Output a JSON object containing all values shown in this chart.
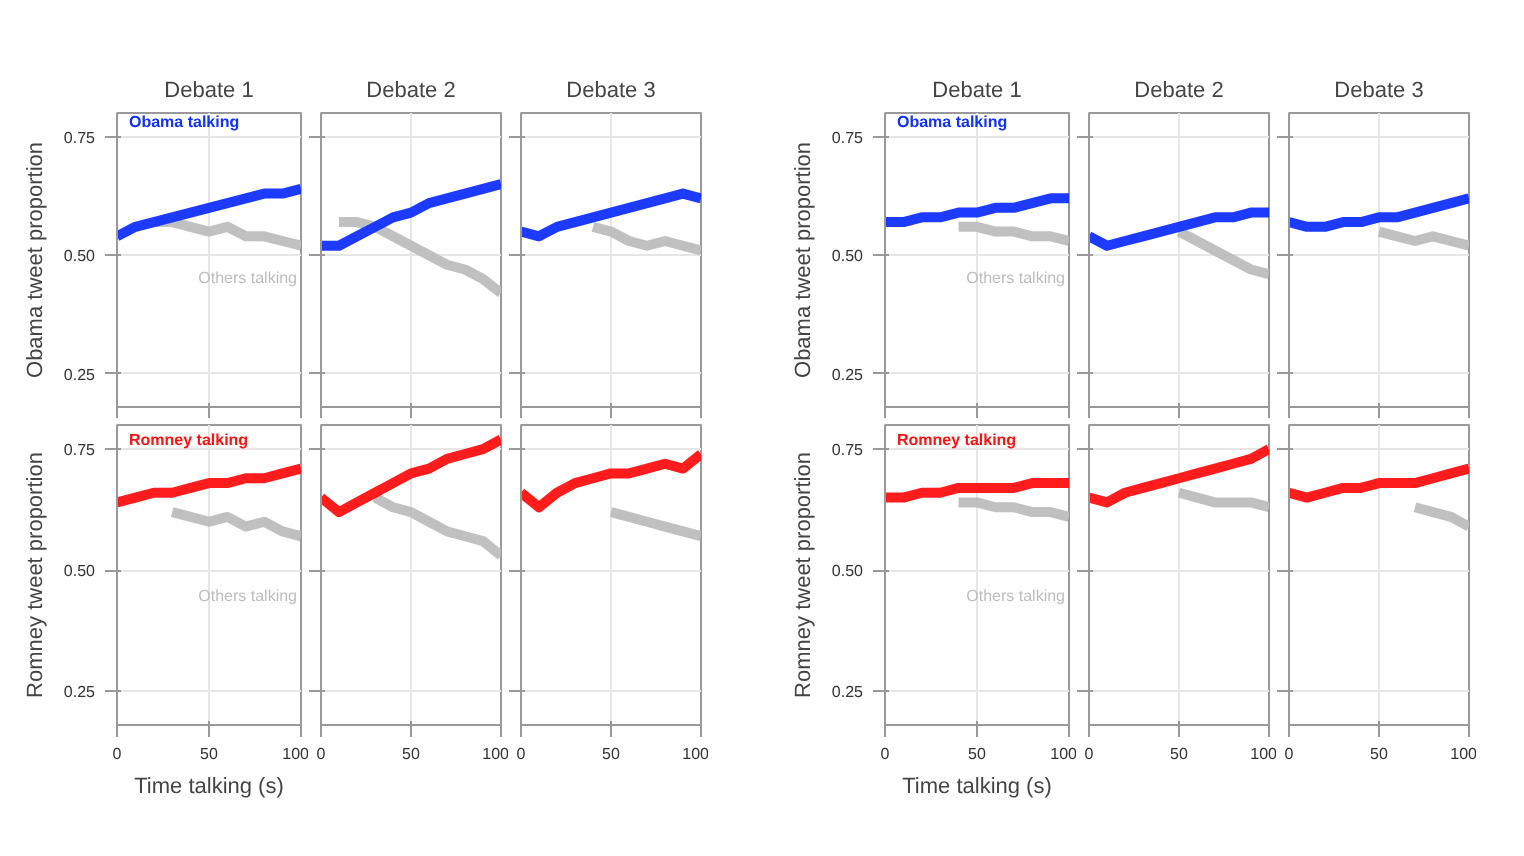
{
  "chart_data": [
    {
      "type": "line",
      "title": "Debate 1",
      "ylabel": "Obama tweet proportion",
      "xlim": [
        0,
        100
      ],
      "ylim": [
        0.18,
        0.8
      ],
      "xticks": [
        {
          "value": 0,
          "label": null
        },
        {
          "value": 50,
          "label": null
        },
        {
          "value": 100,
          "label": null
        }
      ],
      "yticks": [
        {
          "value": 0.25,
          "label": "0.25"
        },
        {
          "value": 0.5,
          "label": "0.50"
        },
        {
          "value": 0.75,
          "label": "0.75"
        }
      ],
      "tick_labels": "y",
      "grid": true,
      "legend": false,
      "series": [
        {
          "name": "Others talking",
          "color": "#bdbdbd",
          "x": [
            20,
            30,
            40,
            50,
            60,
            70,
            80,
            90,
            100
          ],
          "values": [
            0.57,
            0.57,
            0.56,
            0.55,
            0.56,
            0.54,
            0.54,
            0.53,
            0.52
          ]
        },
        {
          "name": "Obama talking",
          "color": "#1030ff",
          "x": [
            0,
            10,
            20,
            30,
            40,
            50,
            60,
            70,
            80,
            90,
            100
          ],
          "values": [
            0.54,
            0.56,
            0.57,
            0.58,
            0.59,
            0.6,
            0.61,
            0.62,
            0.63,
            0.63,
            0.64
          ]
        }
      ]
    },
    {
      "type": "line",
      "title": "Debate 2",
      "xlim": [
        0,
        100
      ],
      "ylim": [
        0.18,
        0.8
      ],
      "xticks": [
        {
          "value": 0,
          "label": null
        },
        {
          "value": 50,
          "label": null
        },
        {
          "value": 100,
          "label": null
        }
      ],
      "yticks": [
        {
          "value": 0.25,
          "label": null
        },
        {
          "value": 0.5,
          "label": null
        },
        {
          "value": 0.75,
          "label": null
        }
      ],
      "tick_labels": false,
      "grid": true,
      "legend": false,
      "series": [
        {
          "color": "#bdbdbd",
          "x": [
            10,
            20,
            30,
            40,
            50,
            60,
            70,
            80,
            90,
            100
          ],
          "values": [
            0.57,
            0.57,
            0.56,
            0.54,
            0.52,
            0.5,
            0.48,
            0.47,
            0.45,
            0.42
          ]
        },
        {
          "color": "#1030ff",
          "x": [
            0,
            10,
            20,
            30,
            40,
            50,
            60,
            70,
            80,
            90,
            100
          ],
          "values": [
            0.52,
            0.52,
            0.54,
            0.56,
            0.58,
            0.59,
            0.61,
            0.62,
            0.63,
            0.64,
            0.65
          ]
        }
      ]
    },
    {
      "type": "line",
      "title": "Debate 3",
      "xlim": [
        0,
        100
      ],
      "ylim": [
        0.18,
        0.8
      ],
      "xticks": [
        {
          "value": 0,
          "label": null
        },
        {
          "value": 50,
          "label": null
        },
        {
          "value": 100,
          "label": null
        }
      ],
      "yticks": [
        {
          "value": 0.25,
          "label": null
        },
        {
          "value": 0.5,
          "label": null
        },
        {
          "value": 0.75,
          "label": null
        }
      ],
      "tick_labels": false,
      "grid": true,
      "legend": false,
      "series": [
        {
          "color": "#bdbdbd",
          "x": [
            40,
            50,
            60,
            70,
            80,
            90,
            100
          ],
          "values": [
            0.56,
            0.55,
            0.53,
            0.52,
            0.53,
            0.52,
            0.51
          ]
        },
        {
          "color": "#1030ff",
          "x": [
            0,
            10,
            20,
            30,
            40,
            50,
            60,
            70,
            80,
            90,
            100
          ],
          "values": [
            0.55,
            0.54,
            0.56,
            0.57,
            0.58,
            0.59,
            0.6,
            0.61,
            0.62,
            0.63,
            0.62
          ]
        }
      ]
    },
    {
      "type": "line",
      "title": "Debate 1",
      "ylabel": "Obama tweet proportion",
      "xlim": [
        0,
        100
      ],
      "ylim": [
        0.18,
        0.8
      ],
      "xticks": [
        {
          "value": 0,
          "label": null
        },
        {
          "value": 50,
          "label": null
        },
        {
          "value": 100,
          "label": null
        }
      ],
      "yticks": [
        {
          "value": 0.25,
          "label": "0.25"
        },
        {
          "value": 0.5,
          "label": "0.50"
        },
        {
          "value": 0.75,
          "label": "0.75"
        }
      ],
      "tick_labels": "y",
      "grid": true,
      "legend": false,
      "series": [
        {
          "name": "Others talking",
          "color": "#bdbdbd",
          "x": [
            40,
            50,
            60,
            70,
            80,
            90,
            100
          ],
          "values": [
            0.56,
            0.56,
            0.55,
            0.55,
            0.54,
            0.54,
            0.53
          ]
        },
        {
          "name": "Obama talking",
          "color": "#1030ff",
          "x": [
            0,
            10,
            20,
            30,
            40,
            50,
            60,
            70,
            80,
            90,
            100
          ],
          "values": [
            0.57,
            0.57,
            0.58,
            0.58,
            0.59,
            0.59,
            0.6,
            0.6,
            0.61,
            0.62,
            0.62
          ]
        }
      ]
    },
    {
      "type": "line",
      "title": "Debate 2",
      "xlim": [
        0,
        100
      ],
      "ylim": [
        0.18,
        0.8
      ],
      "xticks": [
        {
          "value": 0,
          "label": null
        },
        {
          "value": 50,
          "label": null
        },
        {
          "value": 100,
          "label": null
        }
      ],
      "yticks": [
        {
          "value": 0.25,
          "label": null
        },
        {
          "value": 0.5,
          "label": null
        },
        {
          "value": 0.75,
          "label": null
        }
      ],
      "tick_labels": false,
      "grid": true,
      "legend": false,
      "series": [
        {
          "color": "#bdbdbd",
          "x": [
            50,
            60,
            70,
            80,
            90,
            100
          ],
          "values": [
            0.55,
            0.53,
            0.51,
            0.49,
            0.47,
            0.46
          ]
        },
        {
          "color": "#1030ff",
          "x": [
            0,
            10,
            20,
            30,
            40,
            50,
            60,
            70,
            80,
            90,
            100
          ],
          "values": [
            0.54,
            0.52,
            0.53,
            0.54,
            0.55,
            0.56,
            0.57,
            0.58,
            0.58,
            0.59,
            0.59
          ]
        }
      ]
    },
    {
      "type": "line",
      "title": "Debate 3",
      "xlim": [
        0,
        100
      ],
      "ylim": [
        0.18,
        0.8
      ],
      "xticks": [
        {
          "value": 0,
          "label": null
        },
        {
          "value": 50,
          "label": null
        },
        {
          "value": 100,
          "label": null
        }
      ],
      "yticks": [
        {
          "value": 0.25,
          "label": null
        },
        {
          "value": 0.5,
          "label": null
        },
        {
          "value": 0.75,
          "label": null
        }
      ],
      "tick_labels": false,
      "grid": true,
      "legend": false,
      "series": [
        {
          "color": "#bdbdbd",
          "x": [
            50,
            60,
            70,
            80,
            90,
            100
          ],
          "values": [
            0.55,
            0.54,
            0.53,
            0.54,
            0.53,
            0.52
          ]
        },
        {
          "color": "#1030ff",
          "x": [
            0,
            10,
            20,
            30,
            40,
            50,
            60,
            70,
            80,
            90,
            100
          ],
          "values": [
            0.57,
            0.56,
            0.56,
            0.57,
            0.57,
            0.58,
            0.58,
            0.59,
            0.6,
            0.61,
            0.62
          ]
        }
      ]
    },
    {
      "type": "line",
      "ylabel": "Romney tweet proportion",
      "xlabel": "Time talking (s)",
      "xlim": [
        0,
        100
      ],
      "ylim": [
        0.18,
        0.8
      ],
      "xticks": [
        0,
        50,
        100
      ],
      "yticks": [
        {
          "value": 0.25,
          "label": "0.25"
        },
        {
          "value": 0.5,
          "label": "0.50"
        },
        {
          "value": 0.75,
          "label": "0.75"
        }
      ],
      "grid": true,
      "legend": false,
      "series": [
        {
          "name": "Others talking",
          "color": "#bdbdbd",
          "x": [
            30,
            40,
            50,
            60,
            70,
            80,
            90,
            100
          ],
          "values": [
            0.62,
            0.61,
            0.6,
            0.61,
            0.59,
            0.6,
            0.58,
            0.57
          ]
        },
        {
          "name": "Romney talking",
          "color": "#ff1010",
          "x": [
            0,
            10,
            20,
            30,
            40,
            50,
            60,
            70,
            80,
            90,
            100
          ],
          "values": [
            0.64,
            0.65,
            0.66,
            0.66,
            0.67,
            0.68,
            0.68,
            0.69,
            0.69,
            0.7,
            0.71
          ]
        }
      ]
    },
    {
      "type": "line",
      "xlim": [
        0,
        100
      ],
      "ylim": [
        0.18,
        0.8
      ],
      "xticks": [
        0,
        50,
        100
      ],
      "yticks": [
        {
          "value": 0.25,
          "label": null
        },
        {
          "value": 0.5,
          "label": null
        },
        {
          "value": 0.75,
          "label": null
        }
      ],
      "tick_labels": "x",
      "grid": true,
      "legend": false,
      "series": [
        {
          "color": "#bdbdbd",
          "x": [
            30,
            40,
            50,
            60,
            70,
            80,
            90,
            100
          ],
          "values": [
            0.65,
            0.63,
            0.62,
            0.6,
            0.58,
            0.57,
            0.56,
            0.53
          ]
        },
        {
          "color": "#ff1010",
          "x": [
            0,
            10,
            20,
            30,
            40,
            50,
            60,
            70,
            80,
            90,
            100
          ],
          "values": [
            0.65,
            0.62,
            0.64,
            0.66,
            0.68,
            0.7,
            0.71,
            0.73,
            0.74,
            0.75,
            0.77
          ]
        }
      ]
    },
    {
      "type": "line",
      "xlim": [
        0,
        100
      ],
      "ylim": [
        0.18,
        0.8
      ],
      "xticks": [
        0,
        50,
        100
      ],
      "yticks": [
        {
          "value": 0.25,
          "label": null
        },
        {
          "value": 0.5,
          "label": null
        },
        {
          "value": 0.75,
          "label": null
        }
      ],
      "tick_labels": "x",
      "grid": true,
      "legend": false,
      "series": [
        {
          "color": "#bdbdbd",
          "x": [
            50,
            60,
            70,
            80,
            90,
            100
          ],
          "values": [
            0.62,
            0.61,
            0.6,
            0.59,
            0.58,
            0.57
          ]
        },
        {
          "color": "#ff1010",
          "x": [
            0,
            10,
            20,
            30,
            40,
            50,
            60,
            70,
            80,
            90,
            100
          ],
          "values": [
            0.66,
            0.63,
            0.66,
            0.68,
            0.69,
            0.7,
            0.7,
            0.71,
            0.72,
            0.71,
            0.74
          ]
        }
      ]
    },
    {
      "type": "line",
      "ylabel": "Romney tweet proportion",
      "xlabel": "Time talking (s)",
      "xlim": [
        0,
        100
      ],
      "ylim": [
        0.18,
        0.8
      ],
      "xticks": [
        0,
        50,
        100
      ],
      "yticks": [
        {
          "value": 0.25,
          "label": "0.25"
        },
        {
          "value": 0.5,
          "label": "0.50"
        },
        {
          "value": 0.75,
          "label": "0.75"
        }
      ],
      "grid": true,
      "legend": false,
      "series": [
        {
          "name": "Others talking",
          "color": "#bdbdbd",
          "x": [
            40,
            50,
            60,
            70,
            80,
            90,
            100
          ],
          "values": [
            0.64,
            0.64,
            0.63,
            0.63,
            0.62,
            0.62,
            0.61
          ]
        },
        {
          "name": "Romney talking",
          "color": "#ff1010",
          "x": [
            0,
            10,
            20,
            30,
            40,
            50,
            60,
            70,
            80,
            90,
            100
          ],
          "values": [
            0.65,
            0.65,
            0.66,
            0.66,
            0.67,
            0.67,
            0.67,
            0.67,
            0.68,
            0.68,
            0.68
          ]
        }
      ]
    },
    {
      "type": "line",
      "xlim": [
        0,
        100
      ],
      "ylim": [
        0.18,
        0.8
      ],
      "xticks": [
        0,
        50,
        100
      ],
      "yticks": [
        {
          "value": 0.25,
          "label": null
        },
        {
          "value": 0.5,
          "label": null
        },
        {
          "value": 0.75,
          "label": null
        }
      ],
      "tick_labels": "x",
      "grid": true,
      "legend": false,
      "series": [
        {
          "color": "#bdbdbd",
          "x": [
            50,
            60,
            70,
            80,
            90,
            100
          ],
          "values": [
            0.66,
            0.65,
            0.64,
            0.64,
            0.64,
            0.63
          ]
        },
        {
          "color": "#ff1010",
          "x": [
            0,
            10,
            20,
            30,
            40,
            50,
            60,
            70,
            80,
            90,
            100
          ],
          "values": [
            0.65,
            0.64,
            0.66,
            0.67,
            0.68,
            0.69,
            0.7,
            0.71,
            0.72,
            0.73,
            0.75
          ]
        }
      ]
    },
    {
      "type": "line",
      "xlim": [
        0,
        100
      ],
      "ylim": [
        0.18,
        0.8
      ],
      "xticks": [
        0,
        50,
        100
      ],
      "yticks": [
        {
          "value": 0.25,
          "label": null
        },
        {
          "value": 0.5,
          "label": null
        },
        {
          "value": 0.75,
          "label": null
        }
      ],
      "tick_labels": "x",
      "grid": true,
      "legend": false,
      "series": [
        {
          "color": "#bdbdbd",
          "x": [
            70,
            80,
            90,
            100
          ],
          "values": [
            0.63,
            0.62,
            0.61,
            0.59
          ]
        },
        {
          "color": "#ff1010",
          "x": [
            0,
            10,
            20,
            30,
            40,
            50,
            60,
            70,
            80,
            90,
            100
          ],
          "values": [
            0.66,
            0.65,
            0.66,
            0.67,
            0.67,
            0.68,
            0.68,
            0.68,
            0.69,
            0.7,
            0.71
          ]
        }
      ]
    }
  ]
}
